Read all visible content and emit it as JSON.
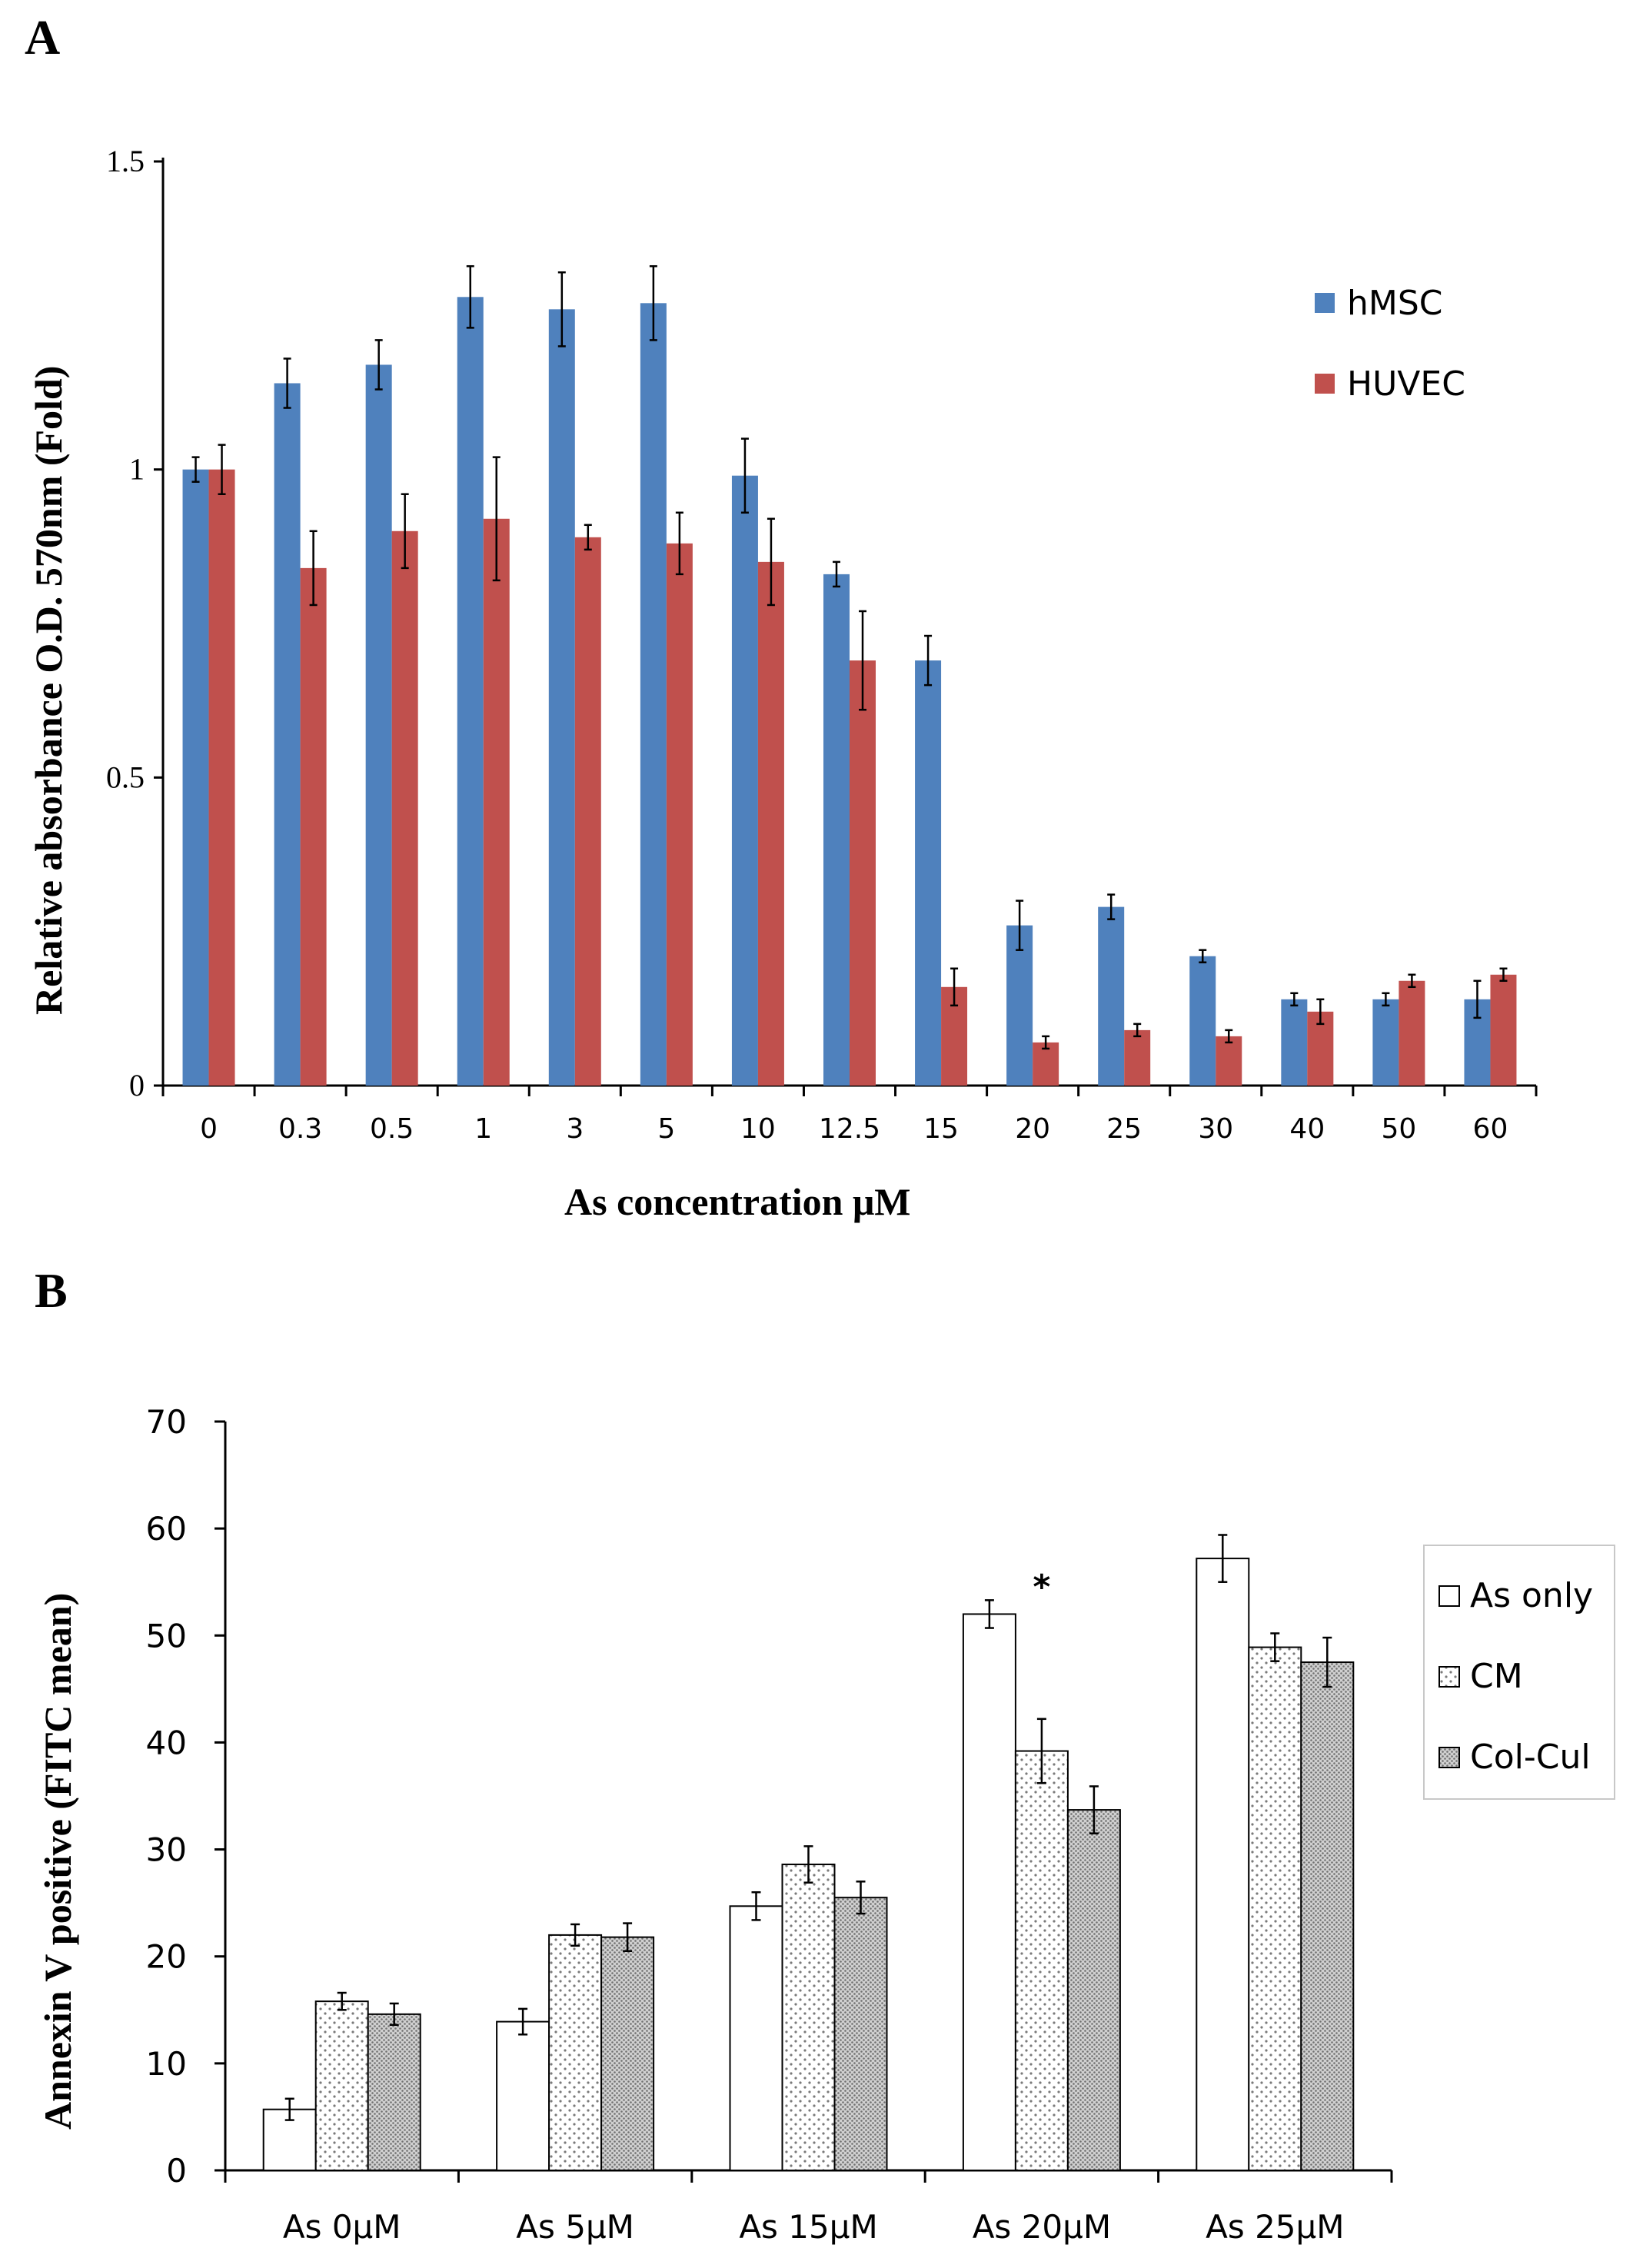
{
  "chart_data": [
    {
      "panel": "A",
      "type": "bar",
      "title": "",
      "xlabel": "As concentration μM",
      "ylabel": "Relative absorbance O.D. 570nm (Fold)",
      "ylim": [
        0,
        1.5
      ],
      "yticks": [
        "0",
        "0.5",
        "1",
        "1.5"
      ],
      "ytick_values": [
        0,
        0.5,
        1,
        1.5
      ],
      "categories": [
        "0",
        "0.3",
        "0.5",
        "1",
        "3",
        "5",
        "10",
        "12.5",
        "15",
        "20",
        "25",
        "30",
        "40",
        "50",
        "60"
      ],
      "series": [
        {
          "name": "hMSC",
          "color": "#4F81BD",
          "values": [
            1.0,
            1.14,
            1.17,
            1.28,
            1.26,
            1.27,
            0.99,
            0.83,
            0.69,
            0.26,
            0.29,
            0.21,
            0.14,
            0.14,
            0.14
          ],
          "errors": [
            0.02,
            0.04,
            0.04,
            0.05,
            0.06,
            0.06,
            0.06,
            0.02,
            0.04,
            0.04,
            0.02,
            0.01,
            0.01,
            0.01,
            0.03
          ]
        },
        {
          "name": "HUVEC",
          "color": "#C0504D",
          "values": [
            1.0,
            0.84,
            0.9,
            0.92,
            0.89,
            0.88,
            0.85,
            0.69,
            0.16,
            0.07,
            0.09,
            0.08,
            0.12,
            0.17,
            0.18
          ],
          "errors": [
            0.04,
            0.06,
            0.06,
            0.1,
            0.02,
            0.05,
            0.07,
            0.08,
            0.03,
            0.01,
            0.01,
            0.01,
            0.02,
            0.01,
            0.01
          ]
        }
      ],
      "legend_position": "top-right"
    },
    {
      "panel": "B",
      "type": "bar",
      "title": "",
      "xlabel": "",
      "ylabel": "Annexin V positive (FITC mean)",
      "ylim": [
        0,
        70
      ],
      "yticks": [
        "0",
        "10",
        "20",
        "30",
        "40",
        "50",
        "60",
        "70"
      ],
      "ytick_values": [
        0,
        10,
        20,
        30,
        40,
        50,
        60,
        70
      ],
      "categories": [
        "As 0μM",
        "As 5μM",
        "As 15μM",
        "As 20μM",
        "As 25μM"
      ],
      "series": [
        {
          "name": "As only",
          "pattern": "white",
          "values": [
            5.7,
            13.9,
            24.7,
            52.0,
            57.2
          ],
          "errors": [
            1.0,
            1.2,
            1.3,
            1.3,
            2.2
          ]
        },
        {
          "name": "CM",
          "pattern": "dots-light",
          "values": [
            15.8,
            22.0,
            28.6,
            39.2,
            48.9
          ],
          "errors": [
            0.8,
            1.0,
            1.7,
            3.0,
            1.3
          ]
        },
        {
          "name": "Col-Cul",
          "pattern": "dots-dense",
          "values": [
            14.6,
            21.8,
            25.5,
            33.7,
            47.5
          ],
          "errors": [
            1.0,
            1.3,
            1.5,
            2.2,
            2.3
          ]
        }
      ],
      "annotations": [
        {
          "text": "*",
          "category": "As 20μM",
          "value": 55.5
        }
      ],
      "legend_position": "right"
    }
  ],
  "labels": {
    "panel_a": "A",
    "panel_b": "B"
  }
}
